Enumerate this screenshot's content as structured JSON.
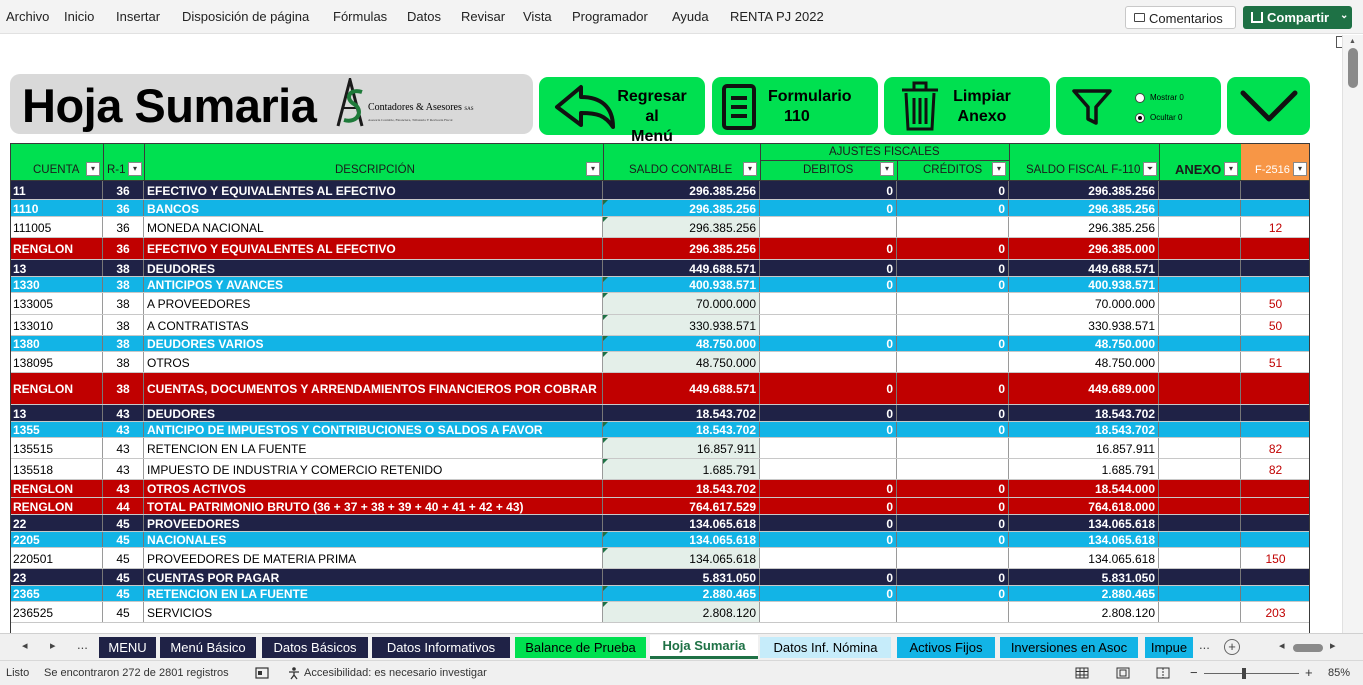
{
  "ribbon": {
    "menu": [
      "Archivo",
      "Inicio",
      "Insertar",
      "Disposición de página",
      "Fórmulas",
      "Datos",
      "Revisar",
      "Vista",
      "Programador",
      "Ayuda",
      "RENTA PJ 2022"
    ],
    "comments_label": "Comentarios",
    "share_label": "Compartir"
  },
  "header": {
    "title": "Hoja Sumaria",
    "logo_initials": "AS",
    "logo_name": "Contadores & Asesores",
    "logo_suffix": "SAS",
    "logo_tagline": "Asesoría Contable, Financiera, Tributaria Y Revisoría Fiscal",
    "btn_regresar": [
      "Regresar al",
      "Menú"
    ],
    "btn_formulario": [
      "Formulario",
      "110"
    ],
    "btn_limpiar": [
      "Limpiar",
      "Anexo"
    ],
    "radio_mostrar": "Mostrar 0",
    "radio_ocultar": "Ocultar 0",
    "radio_selected": "Ocultar 0"
  },
  "columns": {
    "cuenta": "CUENTA",
    "r1": "R-1",
    "descripcion": "DESCRIPCIÓN",
    "saldo_contable": "SALDO CONTABLE",
    "ajustes": "AJUSTES FISCALES",
    "debitos": "DEBITOS",
    "creditos": "CRÉDITOS",
    "saldo_fiscal": "SALDO FISCAL F-110",
    "anexo": "ANEXO",
    "f2516": "F-2516"
  },
  "rows": [
    {
      "style": "navy",
      "cuenta": "11",
      "r1": "36",
      "desc": "EFECTIVO Y EQUIVALENTES AL EFECTIVO",
      "saldo": "296.385.256",
      "deb": "0",
      "cred": "0",
      "fiscal": "296.385.256",
      "anexo": ""
    },
    {
      "style": "cyan",
      "cuenta": "1110",
      "r1": "36",
      "desc": "BANCOS",
      "saldo": "296.385.256",
      "deb": "0",
      "cred": "0",
      "fiscal": "296.385.256",
      "anexo": ""
    },
    {
      "style": "white",
      "cuenta": "111005",
      "r1": "36",
      "desc": "MONEDA NACIONAL",
      "saldo": "296.385.256",
      "deb": "",
      "cred": "",
      "fiscal": "296.385.256",
      "anexo": "12"
    },
    {
      "style": "red",
      "cuenta": "RENGLON",
      "r1": "36",
      "desc": "EFECTIVO Y EQUIVALENTES AL EFECTIVO",
      "saldo": "296.385.256",
      "deb": "0",
      "cred": "0",
      "fiscal": "296.385.000",
      "anexo": ""
    },
    {
      "style": "navy",
      "cuenta": "13",
      "r1": "38",
      "desc": "DEUDORES",
      "saldo": "449.688.571",
      "deb": "0",
      "cred": "0",
      "fiscal": "449.688.571",
      "anexo": ""
    },
    {
      "style": "cyan",
      "cuenta": "1330",
      "r1": "38",
      "desc": "ANTICIPOS Y AVANCES",
      "saldo": "400.938.571",
      "deb": "0",
      "cred": "0",
      "fiscal": "400.938.571",
      "anexo": ""
    },
    {
      "style": "white",
      "cuenta": "133005",
      "r1": "38",
      "desc": "A PROVEEDORES",
      "saldo": "70.000.000",
      "deb": "",
      "cred": "",
      "fiscal": "70.000.000",
      "anexo": "50"
    },
    {
      "style": "white",
      "cuenta": "133010",
      "r1": "38",
      "desc": "A CONTRATISTAS",
      "saldo": "330.938.571",
      "deb": "",
      "cred": "",
      "fiscal": "330.938.571",
      "anexo": "50"
    },
    {
      "style": "cyan",
      "cuenta": "1380",
      "r1": "38",
      "desc": "DEUDORES VARIOS",
      "saldo": "48.750.000",
      "deb": "0",
      "cred": "0",
      "fiscal": "48.750.000",
      "anexo": ""
    },
    {
      "style": "white",
      "cuenta": "138095",
      "r1": "38",
      "desc": "OTROS",
      "saldo": "48.750.000",
      "deb": "",
      "cred": "",
      "fiscal": "48.750.000",
      "anexo": "51"
    },
    {
      "style": "red",
      "cuenta": "RENGLON",
      "r1": "38",
      "desc": "CUENTAS, DOCUMENTOS Y ARRENDAMIENTOS FINANCIEROS POR COBRAR",
      "saldo": "449.688.571",
      "deb": "0",
      "cred": "0",
      "fiscal": "449.689.000",
      "anexo": ""
    },
    {
      "style": "navy",
      "cuenta": "13",
      "r1": "43",
      "desc": "DEUDORES",
      "saldo": "18.543.702",
      "deb": "0",
      "cred": "0",
      "fiscal": "18.543.702",
      "anexo": ""
    },
    {
      "style": "cyan",
      "cuenta": "1355",
      "r1": "43",
      "desc": "ANTICIPO DE IMPUESTOS Y CONTRIBUCIONES O SALDOS A FAVOR",
      "saldo": "18.543.702",
      "deb": "0",
      "cred": "0",
      "fiscal": "18.543.702",
      "anexo": ""
    },
    {
      "style": "white",
      "cuenta": "135515",
      "r1": "43",
      "desc": "RETENCION EN LA FUENTE",
      "saldo": "16.857.911",
      "deb": "",
      "cred": "",
      "fiscal": "16.857.911",
      "anexo": "82"
    },
    {
      "style": "white",
      "cuenta": "135518",
      "r1": "43",
      "desc": "IMPUESTO DE INDUSTRIA Y COMERCIO RETENIDO",
      "saldo": "1.685.791",
      "deb": "",
      "cred": "",
      "fiscal": "1.685.791",
      "anexo": "82"
    },
    {
      "style": "red",
      "cuenta": "RENGLON",
      "r1": "43",
      "desc": "OTROS ACTIVOS",
      "saldo": "18.543.702",
      "deb": "0",
      "cred": "0",
      "fiscal": "18.544.000",
      "anexo": ""
    },
    {
      "style": "red",
      "cuenta": "RENGLON",
      "r1": "44",
      "desc": "TOTAL PATRIMONIO BRUTO (36 + 37 + 38 + 39 + 40 + 41 + 42 + 43)",
      "saldo": "764.617.529",
      "deb": "0",
      "cred": "0",
      "fiscal": "764.618.000",
      "anexo": ""
    },
    {
      "style": "navy",
      "cuenta": "22",
      "r1": "45",
      "desc": "PROVEEDORES",
      "saldo": "134.065.618",
      "deb": "0",
      "cred": "0",
      "fiscal": "134.065.618",
      "anexo": ""
    },
    {
      "style": "cyan",
      "cuenta": "2205",
      "r1": "45",
      "desc": "NACIONALES",
      "saldo": "134.065.618",
      "deb": "0",
      "cred": "0",
      "fiscal": "134.065.618",
      "anexo": ""
    },
    {
      "style": "white",
      "cuenta": "220501",
      "r1": "45",
      "desc": "PROVEEDORES DE MATERIA PRIMA",
      "saldo": "134.065.618",
      "deb": "",
      "cred": "",
      "fiscal": "134.065.618",
      "anexo": "150"
    },
    {
      "style": "navy",
      "cuenta": "23",
      "r1": "45",
      "desc": "CUENTAS POR PAGAR",
      "saldo": "5.831.050",
      "deb": "0",
      "cred": "0",
      "fiscal": "5.831.050",
      "anexo": ""
    },
    {
      "style": "cyan",
      "cuenta": "2365",
      "r1": "45",
      "desc": "RETENCION EN LA FUENTE",
      "saldo": "2.880.465",
      "deb": "0",
      "cred": "0",
      "fiscal": "2.880.465",
      "anexo": ""
    },
    {
      "style": "white",
      "cuenta": "236525",
      "r1": "45",
      "desc": "SERVICIOS",
      "saldo": "2.808.120",
      "deb": "",
      "cred": "",
      "fiscal": "2.808.120",
      "anexo": "203"
    }
  ],
  "sheet_tabs": [
    {
      "label": "MENU",
      "color": "#1f2246",
      "text": "#ffffff"
    },
    {
      "label": "Menú Básico",
      "color": "#1f2246",
      "text": "#ffffff"
    },
    {
      "label": "Datos Básicos",
      "color": "#1f2246",
      "text": "#ffffff"
    },
    {
      "label": "Datos Informativos",
      "color": "#1f2246",
      "text": "#ffffff"
    },
    {
      "label": "Balance de Prueba",
      "color": "#00e050",
      "text": "#000000"
    },
    {
      "label": "Hoja Sumaria",
      "color": "#ffffff",
      "text": "#1e7145",
      "active": true
    },
    {
      "label": "Datos Inf. Nómina",
      "color": "#c6ecfa",
      "text": "#000000"
    },
    {
      "label": "Activos Fijos",
      "color": "#12b4e6",
      "text": "#000000"
    },
    {
      "label": "Inversiones en Asoc",
      "color": "#12b4e6",
      "text": "#000000"
    },
    {
      "label": "Impue",
      "color": "#12b4e6",
      "text": "#000000"
    }
  ],
  "tab_nav": {
    "prev": "◂",
    "next": "▸",
    "more_left": "...",
    "more_right": "...",
    "add": "+"
  },
  "status": {
    "ready": "Listo",
    "records": "Se encontraron 272 de 2801 registros",
    "accessibility": "Accesibilidad: es necesario investigar",
    "zoom": "85%",
    "zoom_minus": "−",
    "zoom_plus": "+"
  }
}
